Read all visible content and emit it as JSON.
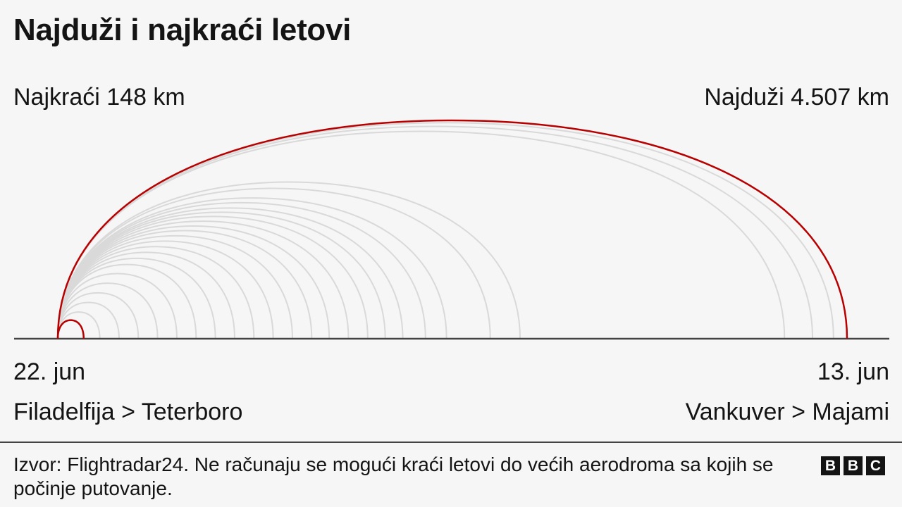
{
  "title": "Najduži i najkraći letovi",
  "shortest": {
    "label": "Najkraći 148 km",
    "date": "22. jun",
    "route": "Filadelfija > Teterboro"
  },
  "longest": {
    "label": "Najduži 4.507 km",
    "date": "13. jun",
    "route": "Vankuver > Majami"
  },
  "source": "Izvor: Flightradar24. Ne računaju se mogući kraći letovi do većih aerodroma sa kojih se počinje putovanje.",
  "logo": [
    "B",
    "B",
    "C"
  ],
  "colors": {
    "highlight": "#b80000",
    "arcs": "#d9d9d9",
    "baseline": "#444444",
    "background": "#f6f6f6",
    "text": "#141414"
  },
  "chart_data": {
    "type": "arc",
    "title": "Najduži i najkraći letovi",
    "unit": "km",
    "max_km": 4507,
    "highlighted": [
      {
        "km": 148
      },
      {
        "km": 4507
      }
    ],
    "distances_km": [
      4507,
      4430,
      4310,
      4150,
      2640,
      2470,
      2220,
      2100,
      1970,
      1870,
      1770,
      1660,
      1550,
      1450,
      1340,
      1230,
      1120,
      1010,
      900,
      790,
      680,
      570,
      460,
      350,
      240,
      148
    ]
  }
}
